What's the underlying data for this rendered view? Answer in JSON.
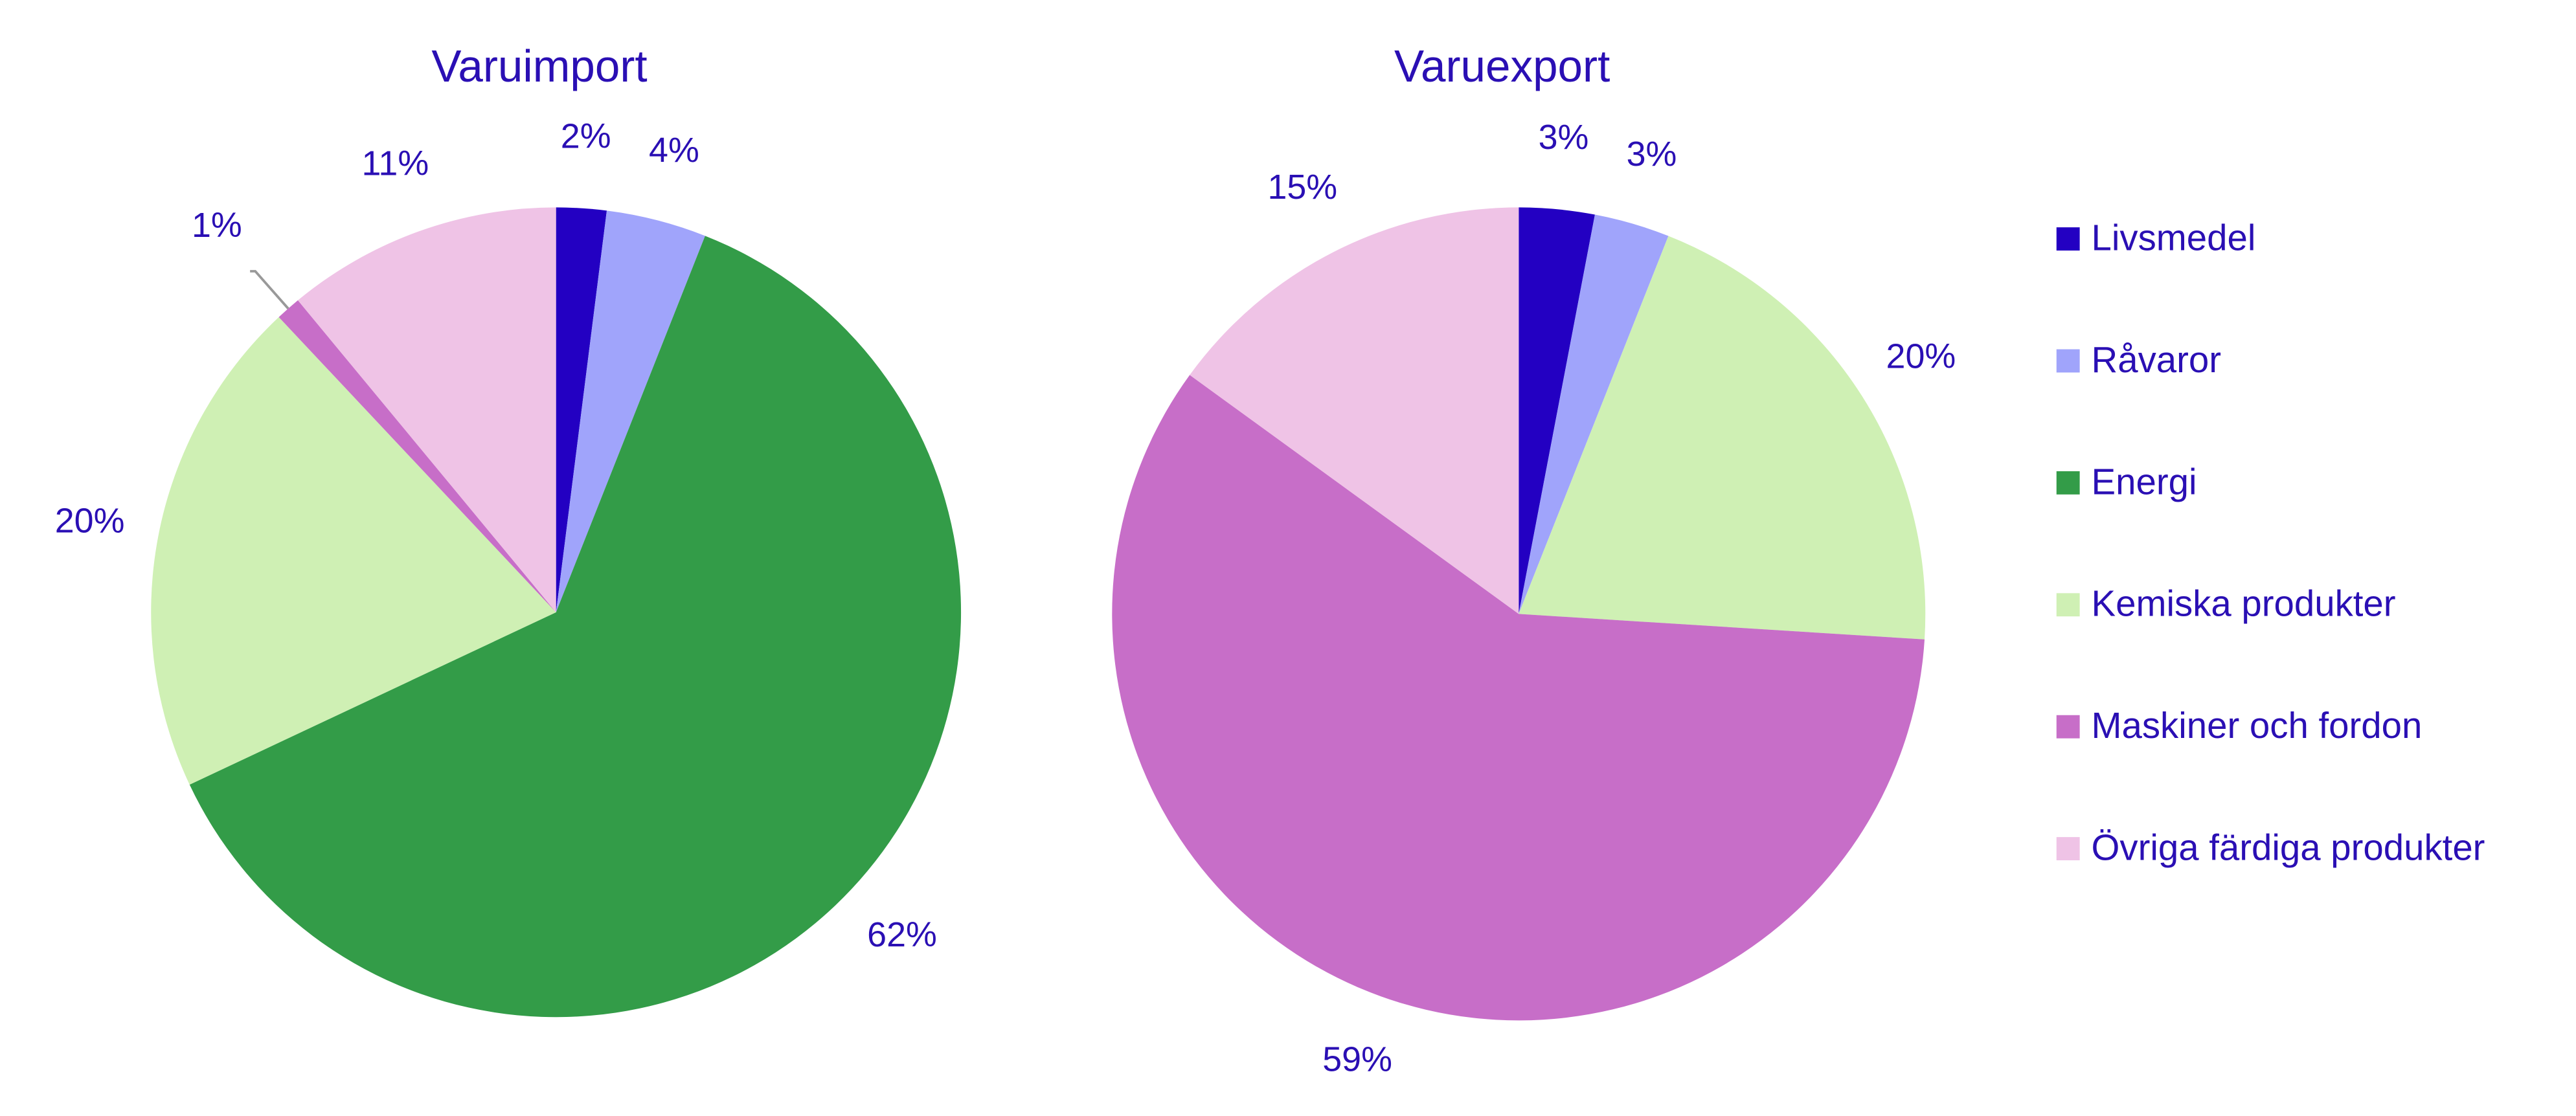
{
  "chart_data": [
    {
      "type": "pie",
      "title": "Varuimport",
      "categories": [
        "Livsmedel",
        "Råvaror",
        "Energi",
        "Kemiska produkter",
        "Maskiner och fordon",
        "Övriga färdiga produkter"
      ],
      "values": [
        2,
        4,
        62,
        20,
        1,
        11
      ],
      "colors": [
        "#2300c2",
        "#a0a4fb",
        "#339c48",
        "#cff0b4",
        "#c76ec8",
        "#efc3e6"
      ]
    },
    {
      "type": "pie",
      "title": "Varuexport",
      "categories": [
        "Livsmedel",
        "Råvaror",
        "Energi",
        "Kemiska produkter",
        "Maskiner och fordon",
        "Övriga färdiga produkter"
      ],
      "values": [
        3,
        3,
        null,
        20,
        59,
        15
      ],
      "colors": [
        "#2300c2",
        "#a0a4fb",
        "#339c48",
        "#cff0b4",
        "#c76ec8",
        "#efc3e6"
      ]
    }
  ]
}
